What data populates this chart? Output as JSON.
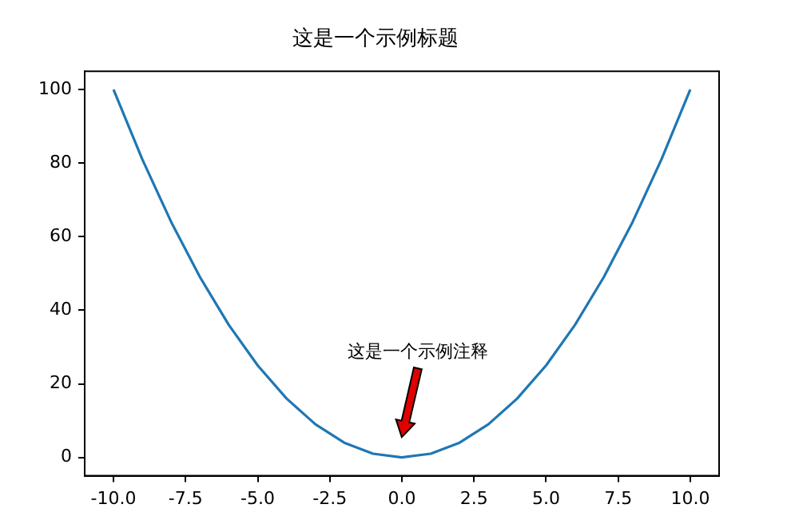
{
  "chart_data": {
    "type": "line",
    "title": "这是一个示例标题",
    "x": [
      -10,
      -9,
      -8,
      -7,
      -6,
      -5,
      -4,
      -3,
      -2,
      -1,
      0,
      1,
      2,
      3,
      4,
      5,
      6,
      7,
      8,
      9,
      10
    ],
    "series": [
      {
        "color": "#1f77b4",
        "values": [
          100,
          81,
          64,
          49,
          36,
          25,
          16,
          9,
          4,
          1,
          0,
          1,
          4,
          9,
          16,
          25,
          36,
          49,
          64,
          81,
          100
        ]
      }
    ],
    "xlim": [
      -11,
      11
    ],
    "xticks": [
      {
        "value": -10,
        "label": "-10.0"
      },
      {
        "value": -7.5,
        "label": "-7.5"
      },
      {
        "value": -5,
        "label": "-5.0"
      },
      {
        "value": -2.5,
        "label": "-2.5"
      },
      {
        "value": 0,
        "label": "0.0"
      },
      {
        "value": 2.5,
        "label": "2.5"
      },
      {
        "value": 5,
        "label": "5.0"
      },
      {
        "value": 7.5,
        "label": "7.5"
      },
      {
        "value": 10,
        "label": "10.0"
      }
    ],
    "ylim": [
      -5,
      105
    ],
    "yticks": [
      0,
      20,
      40,
      60,
      80,
      100
    ],
    "grid": false,
    "legend": false,
    "marker": "none",
    "line_style": "solid",
    "annotations": [
      "这是一个示例注释"
    ]
  }
}
